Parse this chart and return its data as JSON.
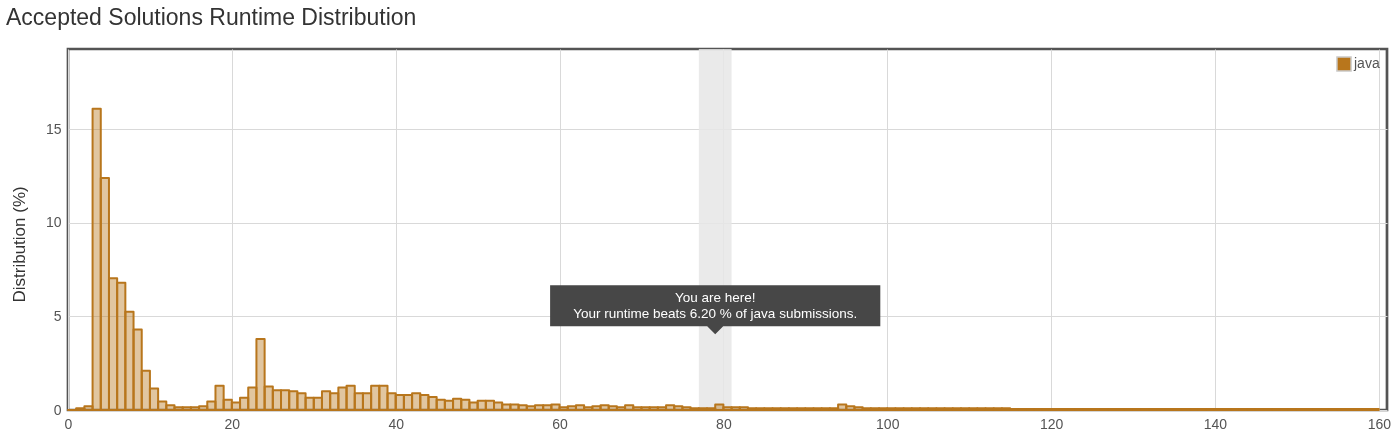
{
  "chart_data": {
    "type": "histogram",
    "title": "Accepted Solutions Runtime Distribution",
    "ylabel": "Distribution (%)",
    "bins": [
      0,
      1,
      2,
      3,
      4,
      5,
      6,
      7,
      8,
      9,
      10,
      11,
      12,
      13,
      14,
      15,
      16,
      17,
      18,
      19,
      20,
      21,
      22,
      23,
      24,
      25,
      26,
      27,
      28,
      29,
      30,
      31,
      32,
      33,
      34,
      35,
      36,
      37,
      38,
      39,
      40,
      41,
      42,
      43,
      44,
      45,
      46,
      47,
      48,
      49,
      50,
      51,
      52,
      53,
      54,
      55,
      56,
      57,
      58,
      59,
      60,
      61,
      62,
      63,
      64,
      65,
      66,
      67,
      68,
      69,
      70,
      71,
      72,
      73,
      74,
      75,
      76,
      77,
      78,
      79,
      80,
      81,
      82,
      83,
      84,
      85,
      86,
      87,
      88,
      89,
      90,
      91,
      92,
      93,
      94,
      95,
      96,
      97,
      98,
      99,
      100,
      101,
      102,
      103,
      104,
      105,
      106,
      107,
      108,
      109,
      110,
      111,
      112,
      113,
      114,
      115,
      116,
      117,
      118,
      119,
      120,
      121,
      122,
      123,
      124,
      125,
      126,
      127,
      128,
      129,
      130,
      131,
      132,
      133,
      134,
      135,
      136,
      137,
      138,
      139,
      140,
      141,
      142,
      143,
      144,
      145,
      146,
      147,
      148,
      149,
      150,
      151,
      152,
      153,
      154,
      155,
      156,
      157,
      158,
      159,
      160
    ],
    "series": [
      {
        "name": "java",
        "color": "#b8761c",
        "values": [
          0,
          0.1,
          0.2,
          16.1,
          12.4,
          7.05,
          6.8,
          5.25,
          4.3,
          2.1,
          1.15,
          0.45,
          0.25,
          0.15,
          0.15,
          0.15,
          0.2,
          0.45,
          1.3,
          0.55,
          0.4,
          0.65,
          1.2,
          3.8,
          1.25,
          1.05,
          1.05,
          1.0,
          0.9,
          0.65,
          0.65,
          1.0,
          0.9,
          1.2,
          1.3,
          0.9,
          0.9,
          1.3,
          1.3,
          0.9,
          0.8,
          0.8,
          0.9,
          0.8,
          0.7,
          0.55,
          0.5,
          0.6,
          0.55,
          0.4,
          0.5,
          0.5,
          0.4,
          0.3,
          0.3,
          0.25,
          0.2,
          0.25,
          0.25,
          0.3,
          0.15,
          0.2,
          0.25,
          0.15,
          0.2,
          0.25,
          0.2,
          0.15,
          0.25,
          0.15,
          0.15,
          0.15,
          0.15,
          0.25,
          0.2,
          0.15,
          0.1,
          0.1,
          0.1,
          0.3,
          0.15,
          0.15,
          0.15,
          0.1,
          0.1,
          0.1,
          0.1,
          0.1,
          0.1,
          0.1,
          0.1,
          0.1,
          0.1,
          0.1,
          0.3,
          0.2,
          0.15,
          0.1,
          0.1,
          0.1,
          0.1,
          0.1,
          0.1,
          0.1,
          0.1,
          0.1,
          0.1,
          0.1,
          0.1,
          0.1,
          0.1,
          0.1,
          0.1,
          0.1,
          0.1,
          0.05,
          0.05,
          0.05,
          0.05,
          0.05,
          0.05,
          0.05,
          0.05,
          0.05,
          0.05,
          0.05,
          0.05,
          0.05,
          0.05,
          0.05,
          0.05,
          0.05,
          0.05,
          0.05,
          0.05,
          0.05,
          0.05,
          0.05,
          0.05,
          0.05,
          0.05,
          0.05,
          0.05,
          0.05,
          0.05,
          0.05,
          0.05,
          0.05,
          0.05,
          0.05,
          0.05,
          0.05,
          0.05,
          0.05,
          0.05,
          0.05,
          0.05,
          0.05,
          0.05,
          0.05
        ]
      }
    ],
    "xlim": [
      0,
      161
    ],
    "xticks": [
      0,
      20,
      40,
      60,
      80,
      100,
      120,
      140,
      160
    ],
    "ylim": [
      0,
      19.3
    ],
    "yticks": [
      0,
      5,
      10,
      15
    ],
    "bands": [
      {
        "axis": "x",
        "from": 77,
        "to": 81,
        "color": "#e6e6e6",
        "label": "You are here!\nYour runtime beats 6.20 % of java submissions."
      }
    ],
    "grid": true,
    "legend": "top right"
  }
}
